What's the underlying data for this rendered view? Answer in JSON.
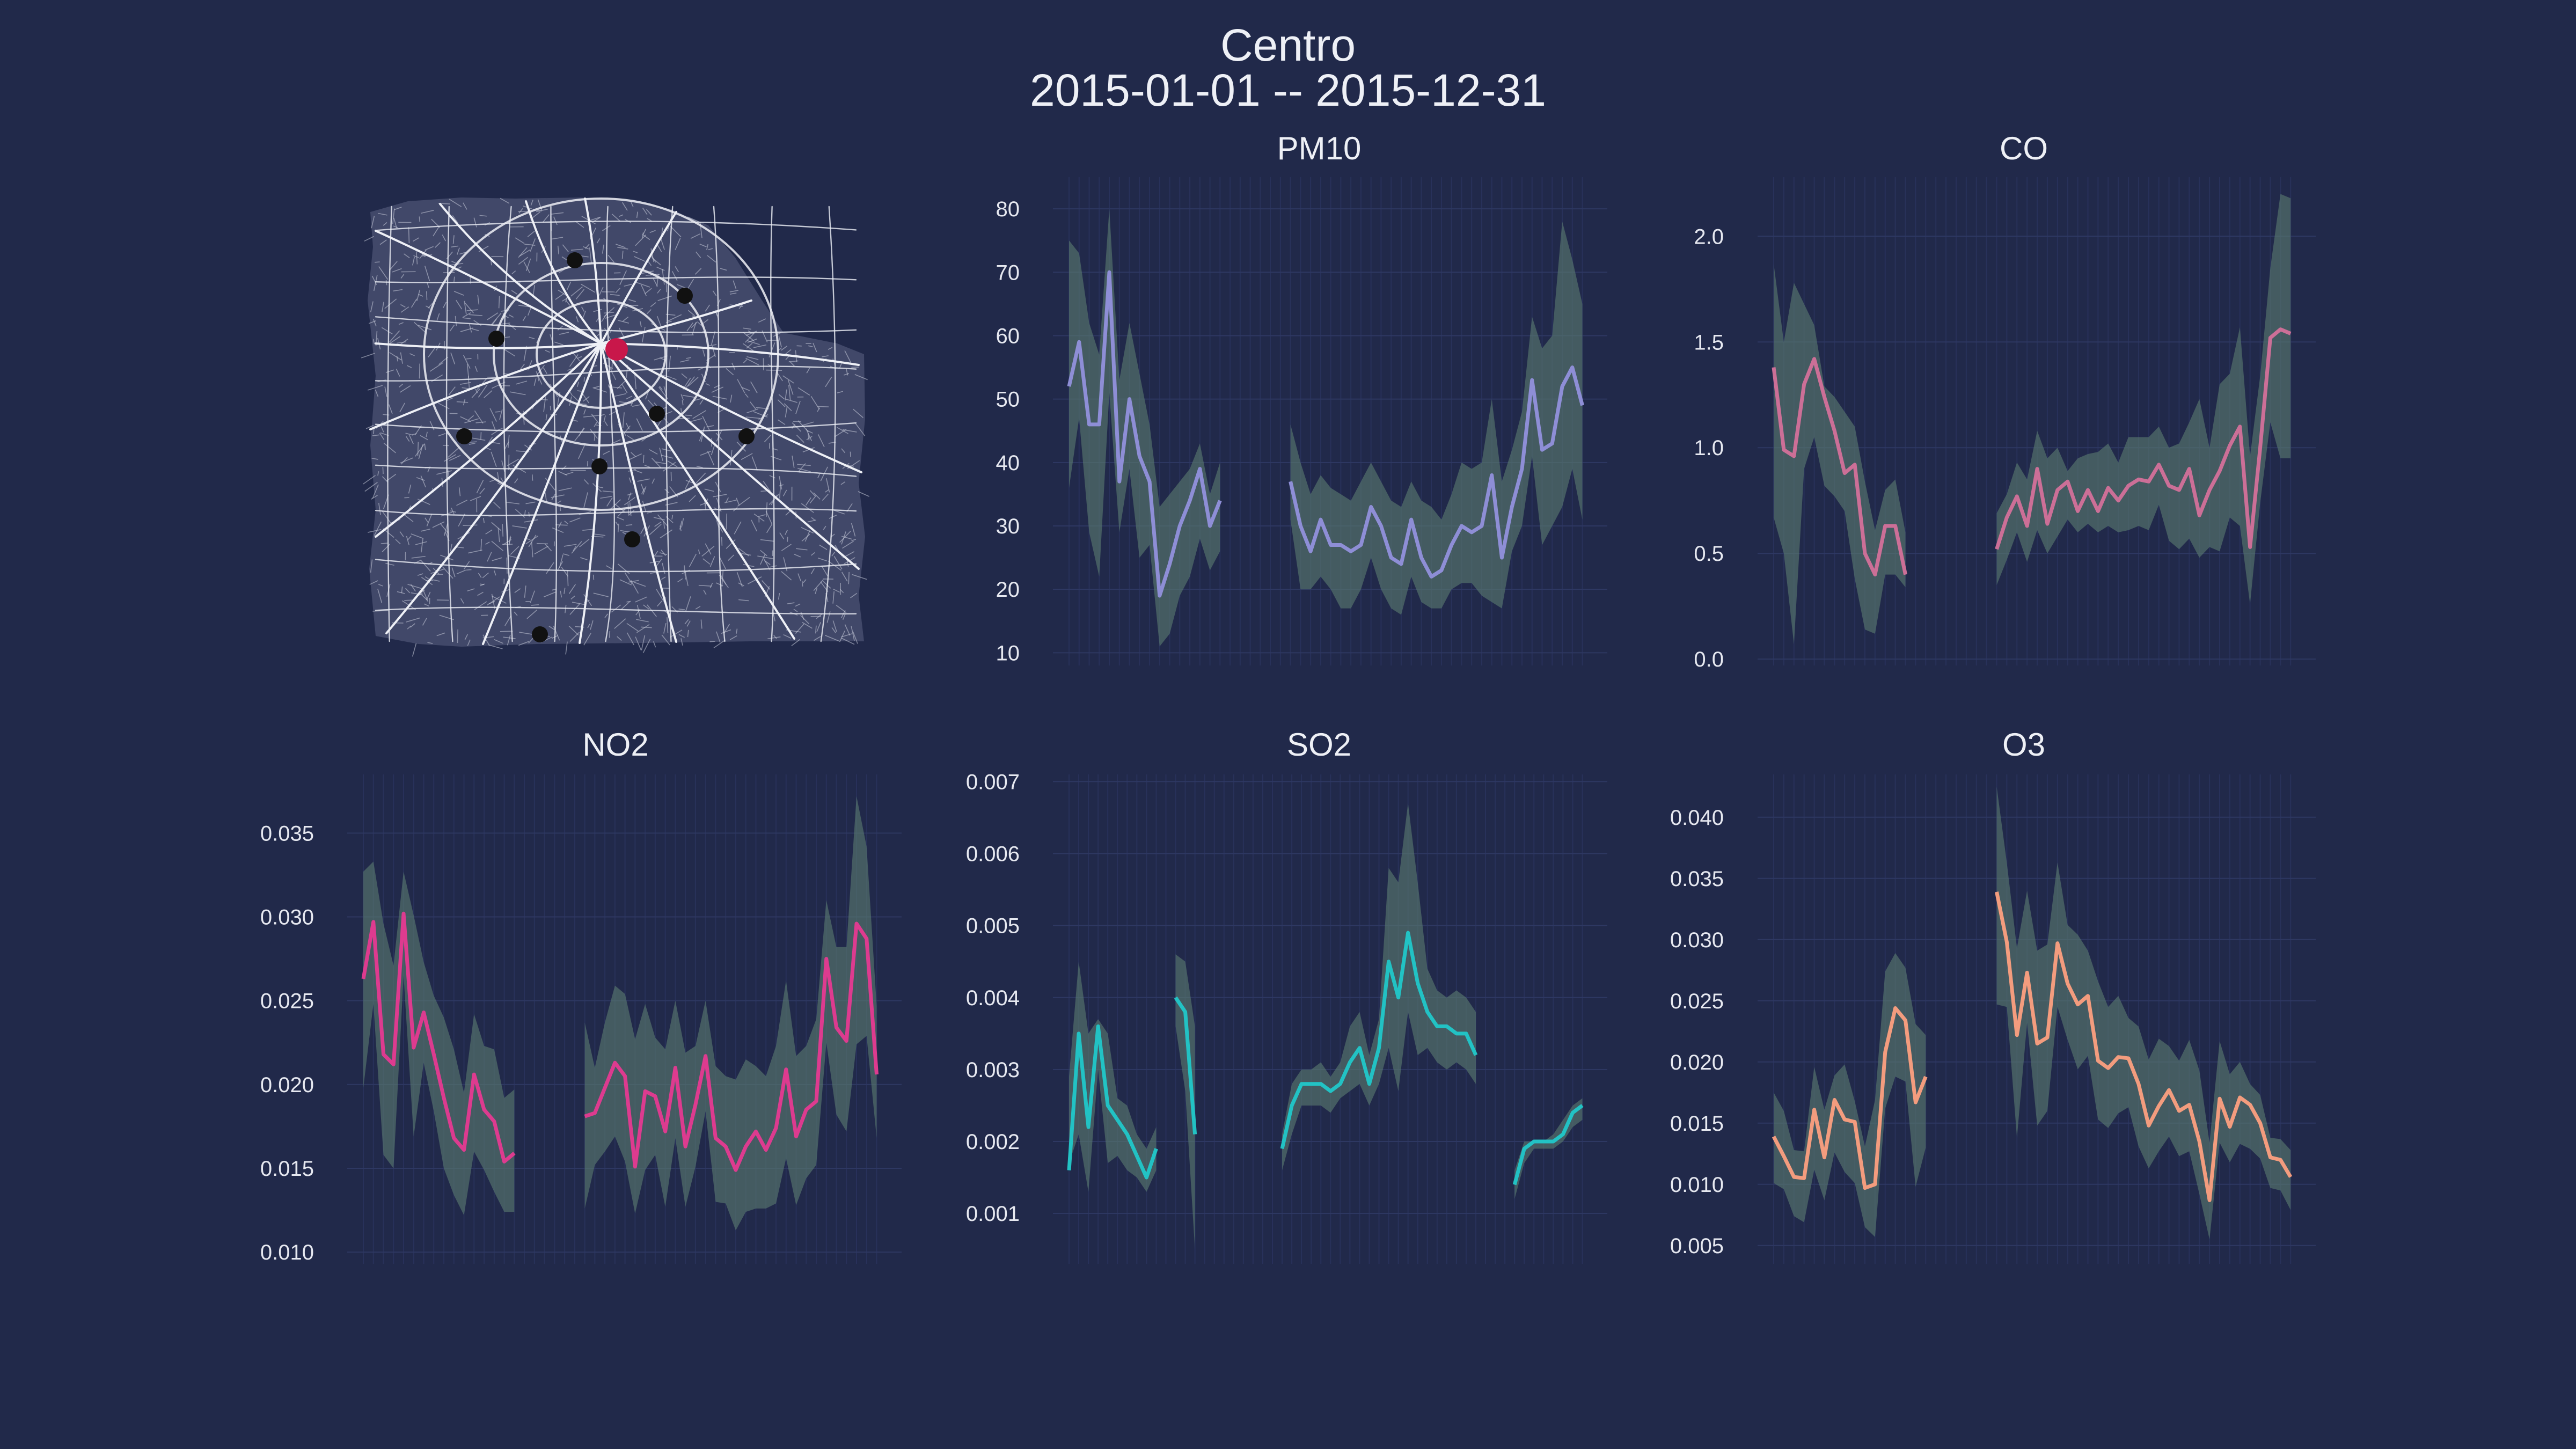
{
  "title": {
    "station": "Centro",
    "date_range": "2015-01-01 -- 2015-12-31"
  },
  "colors": {
    "background": "#21294a",
    "band": "#5a7a70",
    "map_road": "#e6e8f0",
    "map_station": "#111111",
    "map_highlight": "#c8174a"
  },
  "map": {
    "type": "street-map",
    "highlight_station_color": "#c8174a",
    "station_color": "#111111",
    "station_count": 9
  },
  "chart_data": [
    {
      "id": "pm10",
      "type": "line",
      "title": "PM10",
      "color": "#8e8ed6",
      "ylim": [
        8,
        85
      ],
      "yticks": [
        10,
        20,
        30,
        40,
        50,
        60,
        70,
        80
      ],
      "yticklabels": [
        "10",
        "20",
        "30",
        "40",
        "50",
        "60",
        "70",
        "80"
      ],
      "x_period": "weeks of 2015",
      "mean": [
        52,
        59,
        46,
        46,
        70,
        37,
        50,
        41,
        37,
        19,
        24,
        30,
        34,
        39,
        30,
        34,
        null,
        null,
        null,
        null,
        null,
        null,
        37,
        30,
        26,
        31,
        27,
        27,
        26,
        27,
        33,
        30,
        25,
        24,
        31,
        25,
        22,
        23,
        27,
        30,
        29,
        30,
        38,
        25,
        33,
        39,
        53,
        42,
        43,
        52,
        55,
        49
      ],
      "upper": [
        75,
        73,
        62,
        57,
        80,
        53,
        62,
        54,
        46,
        33,
        35,
        37,
        39,
        43,
        35,
        40,
        null,
        null,
        null,
        null,
        null,
        null,
        46,
        40,
        35,
        38,
        36,
        35,
        34,
        37,
        40,
        37,
        34,
        33,
        37,
        34,
        33,
        31,
        35,
        40,
        39,
        40,
        50,
        37,
        42,
        48,
        63,
        58,
        60,
        78,
        72,
        65
      ],
      "lower": [
        36,
        47,
        29,
        22,
        51,
        29,
        39,
        25,
        27,
        11,
        13,
        19,
        22,
        28,
        23,
        26,
        null,
        null,
        null,
        null,
        null,
        null,
        31,
        20,
        20,
        22,
        20,
        17,
        17,
        20,
        25,
        20,
        17,
        16,
        22,
        18,
        17,
        17,
        20,
        21,
        21,
        19,
        18,
        17,
        26,
        30,
        41,
        27,
        30,
        33,
        39,
        31
      ]
    },
    {
      "id": "co",
      "type": "line",
      "title": "CO",
      "color": "#cc6f97",
      "ylim": [
        -0.03,
        2.28
      ],
      "yticks": [
        0.0,
        0.5,
        1.0,
        1.5,
        2.0
      ],
      "yticklabels": [
        "0.0",
        "0.5",
        "1.0",
        "1.5",
        "2.0"
      ],
      "x_period": "weeks of 2015",
      "mean": [
        1.38,
        0.99,
        0.96,
        1.3,
        1.42,
        1.24,
        1.08,
        0.88,
        0.92,
        0.5,
        0.4,
        0.63,
        0.63,
        0.4,
        null,
        null,
        null,
        null,
        null,
        null,
        null,
        null,
        0.52,
        0.67,
        0.77,
        0.63,
        0.9,
        0.64,
        0.8,
        0.84,
        0.7,
        0.8,
        0.7,
        0.81,
        0.75,
        0.82,
        0.85,
        0.84,
        0.92,
        0.82,
        0.8,
        0.9,
        0.68,
        0.8,
        0.89,
        1.01,
        1.1,
        0.53,
        1.0,
        1.52,
        1.56,
        1.54
      ],
      "upper": [
        1.87,
        1.5,
        1.78,
        1.68,
        1.58,
        1.29,
        1.24,
        1.17,
        1.1,
        0.84,
        0.61,
        0.8,
        0.85,
        0.6,
        null,
        null,
        null,
        null,
        null,
        null,
        null,
        null,
        0.69,
        0.78,
        0.93,
        0.85,
        1.08,
        0.95,
        1.0,
        0.89,
        0.95,
        0.97,
        0.98,
        1.02,
        0.93,
        1.05,
        1.05,
        1.05,
        1.1,
        1.0,
        1.02,
        1.12,
        1.23,
        1.0,
        1.3,
        1.35,
        1.57,
        0.96,
        1.34,
        1.85,
        2.2,
        2.18
      ],
      "lower": [
        0.67,
        0.5,
        0.07,
        0.9,
        1.05,
        0.82,
        0.77,
        0.7,
        0.38,
        0.14,
        0.12,
        0.4,
        0.4,
        0.34,
        null,
        null,
        null,
        null,
        null,
        null,
        null,
        null,
        0.35,
        0.47,
        0.6,
        0.46,
        0.61,
        0.5,
        0.58,
        0.66,
        0.6,
        0.64,
        0.6,
        0.63,
        0.6,
        0.61,
        0.63,
        0.61,
        0.73,
        0.56,
        0.52,
        0.57,
        0.48,
        0.53,
        0.51,
        0.67,
        0.63,
        0.26,
        0.74,
        1.12,
        0.95,
        0.95
      ]
    },
    {
      "id": "no2",
      "type": "line",
      "title": "NO2",
      "color": "#dd3b8f",
      "ylim": [
        0.0093,
        0.0385
      ],
      "yticks": [
        0.01,
        0.015,
        0.02,
        0.025,
        0.03,
        0.035
      ],
      "yticklabels": [
        "0.010",
        "0.015",
        "0.020",
        "0.025",
        "0.030",
        "0.035"
      ],
      "x_period": "weeks of 2015",
      "mean": [
        0.0263,
        0.0297,
        0.0218,
        0.0212,
        0.0302,
        0.0222,
        0.0243,
        0.0218,
        0.0192,
        0.0168,
        0.0161,
        0.0206,
        0.0185,
        0.0178,
        0.0154,
        0.0159,
        null,
        null,
        null,
        null,
        null,
        null,
        0.0181,
        0.0183,
        0.0198,
        0.0213,
        0.0205,
        0.0151,
        0.0196,
        0.0193,
        0.0172,
        0.021,
        0.0163,
        0.0188,
        0.0217,
        0.0168,
        0.0163,
        0.0149,
        0.0163,
        0.0172,
        0.0161,
        0.0174,
        0.0209,
        0.0169,
        0.0185,
        0.019,
        0.0275,
        0.0234,
        0.0226,
        0.0296,
        0.0287,
        0.0206
      ],
      "upper": [
        0.0327,
        0.0333,
        0.0296,
        0.0271,
        0.0327,
        0.0301,
        0.0273,
        0.0253,
        0.024,
        0.0221,
        0.0195,
        0.0242,
        0.0223,
        0.0221,
        0.0192,
        0.0197,
        null,
        null,
        null,
        null,
        null,
        null,
        0.0237,
        0.021,
        0.0237,
        0.0259,
        0.0254,
        0.0227,
        0.0248,
        0.0228,
        0.0221,
        0.025,
        0.0219,
        0.0223,
        0.025,
        0.0211,
        0.0205,
        0.0203,
        0.0215,
        0.0211,
        0.0205,
        0.0223,
        0.0262,
        0.0217,
        0.0223,
        0.0239,
        0.031,
        0.0282,
        0.0282,
        0.0372,
        0.0342,
        0.0247
      ],
      "lower": [
        0.0198,
        0.0248,
        0.0158,
        0.015,
        0.0265,
        0.0169,
        0.0213,
        0.0184,
        0.015,
        0.0134,
        0.0122,
        0.016,
        0.0149,
        0.0136,
        0.0124,
        0.0124,
        null,
        null,
        null,
        null,
        null,
        null,
        0.0126,
        0.0152,
        0.016,
        0.0169,
        0.0154,
        0.0123,
        0.0149,
        0.0158,
        0.0127,
        0.0168,
        0.0127,
        0.0151,
        0.0184,
        0.013,
        0.0129,
        0.0113,
        0.0124,
        0.0126,
        0.0126,
        0.0129,
        0.0156,
        0.0128,
        0.0144,
        0.0152,
        0.0225,
        0.0182,
        0.0172,
        0.0224,
        0.0229,
        0.0168
      ]
    },
    {
      "id": "so2",
      "type": "line",
      "title": "SO2",
      "color": "#22c2c4",
      "ylim": [
        0.0003,
        0.0071
      ],
      "yticks": [
        0.001,
        0.002,
        0.003,
        0.004,
        0.005,
        0.006,
        0.007
      ],
      "yticklabels": [
        "0.001",
        "0.002",
        "0.003",
        "0.004",
        "0.005",
        "0.006",
        "0.007"
      ],
      "x_period": "weeks of 2015",
      "mean": [
        0.0016,
        0.0035,
        0.0022,
        0.0036,
        0.0025,
        0.0023,
        0.0021,
        0.0018,
        0.0015,
        0.0019,
        null,
        0.004,
        0.0038,
        0.0021,
        null,
        null,
        null,
        null,
        null,
        null,
        null,
        null,
        0.0019,
        0.0025,
        0.0028,
        0.0028,
        0.0028,
        0.0027,
        0.0028,
        0.0031,
        0.0033,
        0.0028,
        0.0033,
        0.0045,
        0.004,
        0.0049,
        0.0042,
        0.0038,
        0.0036,
        0.0036,
        0.0035,
        0.0035,
        0.0032,
        null,
        null,
        null,
        0.0014,
        0.0019,
        0.002,
        0.002,
        0.002,
        0.0021,
        0.0024,
        0.0025
      ],
      "upper": [
        0.0029,
        0.0045,
        0.0035,
        0.0037,
        0.0035,
        0.0026,
        0.0025,
        0.0021,
        0.0019,
        0.0022,
        null,
        0.0046,
        0.0045,
        0.0036,
        null,
        null,
        null,
        null,
        null,
        null,
        null,
        null,
        0.0021,
        0.0028,
        0.003,
        0.003,
        0.0031,
        0.0029,
        0.0031,
        0.0036,
        0.0038,
        0.0032,
        0.0037,
        0.0058,
        0.0056,
        0.0067,
        0.0056,
        0.0044,
        0.0041,
        0.004,
        0.0041,
        0.004,
        0.0038,
        null,
        null,
        null,
        0.0016,
        0.002,
        0.002,
        0.002,
        0.0021,
        0.0023,
        0.0025,
        0.0026
      ],
      "lower": [
        0.0017,
        0.0021,
        0.0013,
        0.003,
        0.0017,
        0.0018,
        0.0016,
        0.0015,
        0.0013,
        0.0016,
        null,
        0.0036,
        0.0027,
        0.0005,
        null,
        null,
        null,
        null,
        null,
        null,
        null,
        null,
        0.0016,
        0.0021,
        0.0025,
        0.0025,
        0.0025,
        0.0024,
        0.0026,
        0.0027,
        0.0028,
        0.0025,
        0.0028,
        0.0033,
        0.0027,
        0.0038,
        0.0032,
        0.0033,
        0.0031,
        0.003,
        0.0031,
        0.003,
        0.0028,
        null,
        null,
        null,
        0.0012,
        0.0017,
        0.0019,
        0.0019,
        0.0019,
        0.002,
        0.0022,
        0.0023
      ]
    },
    {
      "id": "o3",
      "type": "line",
      "title": "O3",
      "color": "#f39c7e",
      "ylim": [
        0.0035,
        0.0435
      ],
      "yticks": [
        0.005,
        0.01,
        0.015,
        0.02,
        0.025,
        0.03,
        0.035,
        0.04
      ],
      "yticklabels": [
        "0.005",
        "0.010",
        "0.015",
        "0.020",
        "0.025",
        "0.030",
        "0.035",
        "0.040"
      ],
      "x_period": "weeks of 2015",
      "mean": [
        0.0139,
        0.0123,
        0.0106,
        0.0105,
        0.0161,
        0.0122,
        0.0169,
        0.0153,
        0.0151,
        0.0097,
        0.01,
        0.0208,
        0.0244,
        0.0234,
        0.0167,
        0.0188,
        null,
        null,
        null,
        null,
        null,
        null,
        0.0339,
        0.0298,
        0.0222,
        0.0273,
        0.0215,
        0.022,
        0.0297,
        0.0264,
        0.0247,
        0.0254,
        0.0201,
        0.0195,
        0.0204,
        0.0203,
        0.0182,
        0.0148,
        0.0164,
        0.0177,
        0.016,
        0.0165,
        0.0135,
        0.0087,
        0.017,
        0.0147,
        0.0171,
        0.0165,
        0.015,
        0.0122,
        0.012,
        0.0106
      ],
      "upper": [
        0.0175,
        0.016,
        0.0128,
        0.0127,
        0.0196,
        0.0161,
        0.0189,
        0.0198,
        0.0168,
        0.0131,
        0.0169,
        0.0274,
        0.0289,
        0.0277,
        0.0231,
        0.0222,
        null,
        null,
        null,
        null,
        null,
        null,
        0.0425,
        0.0363,
        0.0293,
        0.034,
        0.0291,
        0.0296,
        0.0363,
        0.0312,
        0.0304,
        0.0291,
        0.0266,
        0.0245,
        0.0254,
        0.0236,
        0.0229,
        0.0202,
        0.0219,
        0.0213,
        0.0201,
        0.0218,
        0.0193,
        0.0134,
        0.0217,
        0.019,
        0.02,
        0.0182,
        0.0173,
        0.0138,
        0.0137,
        0.0128
      ],
      "lower": [
        0.0101,
        0.0096,
        0.0074,
        0.0069,
        0.0112,
        0.0087,
        0.0126,
        0.011,
        0.0101,
        0.0065,
        0.0057,
        0.0162,
        0.0188,
        0.0184,
        0.0098,
        0.013,
        null,
        null,
        null,
        null,
        null,
        null,
        0.0247,
        0.0245,
        0.0138,
        0.0232,
        0.0148,
        0.016,
        0.0245,
        0.0218,
        0.0194,
        0.0205,
        0.0153,
        0.0146,
        0.0158,
        0.0163,
        0.0131,
        0.0113,
        0.0127,
        0.0139,
        0.0123,
        0.0127,
        0.0092,
        0.0055,
        0.0134,
        0.0118,
        0.0133,
        0.0129,
        0.0121,
        0.0097,
        0.0095,
        0.0079
      ]
    }
  ]
}
